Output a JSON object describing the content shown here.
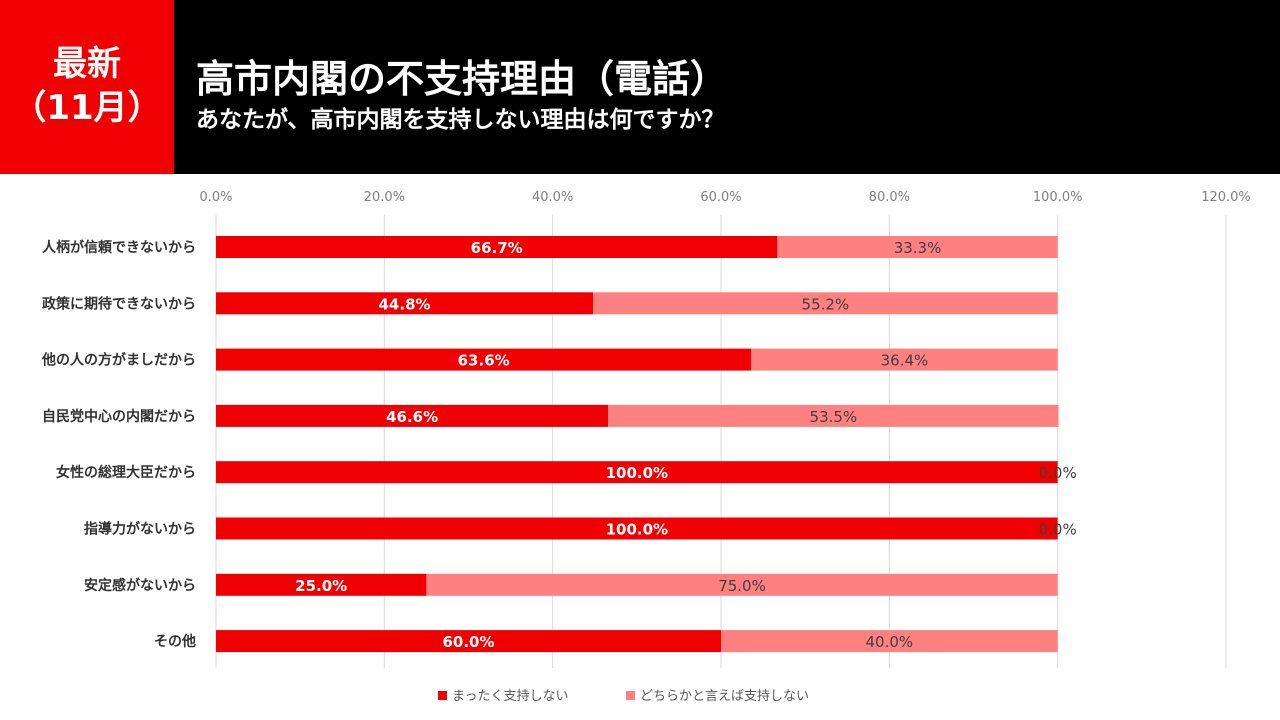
{
  "header": {
    "badge_line1": "最新",
    "badge_line2": "（11月）",
    "title": "高市内閣の不支持理由（電話）",
    "subtitle": "あなたが、高市内閣を支持しない理由は何ですか？"
  },
  "colors": {
    "series1": "#f00000",
    "series2": "#ff8080",
    "header_bg": "#000000",
    "badge_bg": "#f00000"
  },
  "chart_data": {
    "type": "bar",
    "stacked": true,
    "orientation": "horizontal",
    "categories": [
      "人柄が信頼できないから",
      "政策に期待できないから",
      "他の人の方がましだから",
      "自民党中心の内閣だから",
      "女性の総理大臣だから",
      "指導力がないから",
      "安定感がないから",
      "その他"
    ],
    "series": [
      {
        "name": "まったく支持しない",
        "values": [
          66.7,
          44.8,
          63.6,
          46.6,
          100.0,
          100.0,
          25.0,
          60.0
        ]
      },
      {
        "name": "どちらかと言えば支持しない",
        "values": [
          33.3,
          55.2,
          36.4,
          53.5,
          0.0,
          0.0,
          75.0,
          40.0
        ]
      }
    ],
    "xlim": [
      0,
      120
    ],
    "xticks": [
      "0.0%",
      "20.0%",
      "40.0%",
      "60.0%",
      "80.0%",
      "100.0%",
      "120.0%"
    ],
    "grid": true,
    "legend": "bottom"
  }
}
